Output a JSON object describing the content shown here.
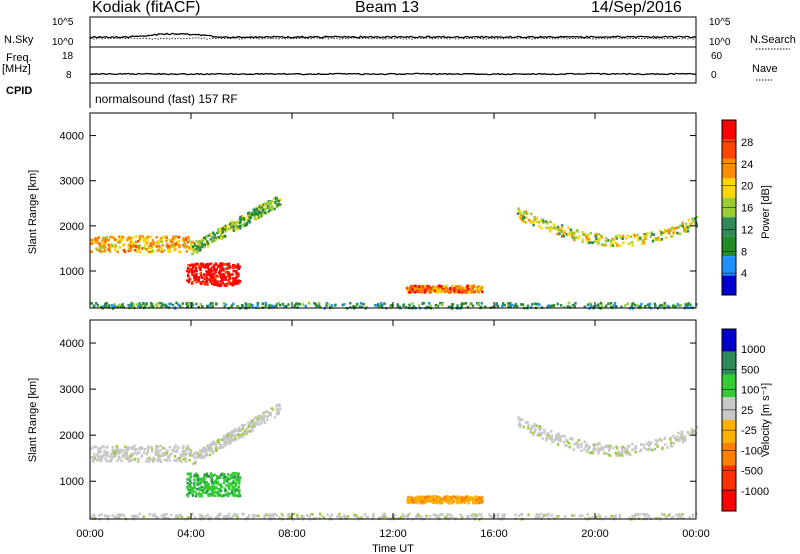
{
  "header": {
    "station": "Kodiak (fitACF)",
    "beam": "Beam 13",
    "date": "14/Sep/2016"
  },
  "summary_panel": {
    "nsky_label": "N.Sky",
    "nsearch_label": "N.Search",
    "freq_label_top": "Freq.",
    "freq_label_unit": "[MHz]",
    "nave_label": "Nave",
    "cpid_label": "CPID",
    "cpid_text": "normalsound (fast) 157 RF",
    "noise_ticks_left": [
      "10^5",
      "10^0"
    ],
    "noise_ticks_right": [
      "10^5",
      "10^0"
    ],
    "freq_ticks_left": [
      "18",
      "8"
    ],
    "nave_ticks_right": [
      "60",
      "0"
    ]
  },
  "colorbars": {
    "power": {
      "label": "Power [dB]",
      "ticks": [
        "28",
        "24",
        "20",
        "16",
        "12",
        "8",
        "4"
      ],
      "colors": [
        "#ff0000",
        "#ff4500",
        "#ff8c00",
        "#ffd700",
        "#9acd32",
        "#2e8b57",
        "#228b22",
        "#1e90ff",
        "#0000cd"
      ]
    },
    "velocity": {
      "label": "Velocity [m s⁻¹]",
      "ticks": [
        "1000",
        "500",
        "100",
        "25",
        "-25",
        "-100",
        "-500",
        "-1000"
      ],
      "colors": [
        "#0000cd",
        "#2e8b57",
        "#32cd32",
        "#c8c8c8",
        "#ffb000",
        "#ff7f00",
        "#ff3000",
        "#ff0000"
      ]
    }
  },
  "chart_data": [
    {
      "type": "heatmap",
      "panel": "power",
      "xlabel": "",
      "ylabel": "Slant Range [km]",
      "xlim": [
        "00:00",
        "24:00"
      ],
      "ylim": [
        180,
        4500
      ],
      "y_ticks": [
        1000,
        2000,
        3000,
        4000
      ],
      "x_ticks": [
        "00:00",
        "04:00",
        "08:00",
        "12:00",
        "16:00",
        "20:00",
        "00:00"
      ],
      "regions": [
        {
          "name": "band-00-04",
          "t": [
            0,
            4
          ],
          "r": [
            1450,
            1800
          ],
          "value_db": 16
        },
        {
          "name": "arc-04-07.5",
          "t": [
            4,
            7.5
          ],
          "r": [
            1500,
            2600
          ],
          "value_db": 12
        },
        {
          "name": "blob-04-06",
          "t": [
            3.8,
            5.9
          ],
          "r": [
            700,
            1200
          ],
          "value_db": 28
        },
        {
          "name": "blob-12.5-15.5",
          "t": [
            12.5,
            15.5
          ],
          "r": [
            550,
            700
          ],
          "value_db": 20
        },
        {
          "name": "band-17-24",
          "t": [
            16.9,
            24
          ],
          "r": [
            1550,
            2500
          ],
          "value_db": 14
        },
        {
          "name": "ground-scatter",
          "t": [
            0,
            24
          ],
          "r": [
            200,
            320
          ],
          "value_db": 8
        }
      ]
    },
    {
      "type": "heatmap",
      "panel": "velocity",
      "xlabel": "Time UT",
      "ylabel": "Slant Range [km]",
      "xlim": [
        "00:00",
        "24:00"
      ],
      "ylim": [
        180,
        4500
      ],
      "y_ticks": [
        1000,
        2000,
        3000,
        4000
      ],
      "x_ticks": [
        "00:00",
        "04:00",
        "08:00",
        "12:00",
        "16:00",
        "20:00",
        "00:00"
      ],
      "regions": [
        {
          "name": "band-00-04",
          "t": [
            0,
            4
          ],
          "r": [
            1450,
            1800
          ],
          "value_ms": 0
        },
        {
          "name": "arc-04-07.5",
          "t": [
            4,
            7.5
          ],
          "r": [
            1500,
            2600
          ],
          "value_ms": 0
        },
        {
          "name": "blob-04-06",
          "t": [
            3.8,
            5.9
          ],
          "r": [
            700,
            1200
          ],
          "value_ms": 80
        },
        {
          "name": "blob-12.5-15.5",
          "t": [
            12.5,
            15.5
          ],
          "r": [
            550,
            700
          ],
          "value_ms": -80
        },
        {
          "name": "band-17-24",
          "t": [
            16.9,
            24
          ],
          "r": [
            1550,
            2500
          ],
          "value_ms": 0
        },
        {
          "name": "ground-scatter",
          "t": [
            0,
            24
          ],
          "r": [
            200,
            320
          ],
          "value_ms": 20
        }
      ]
    }
  ]
}
